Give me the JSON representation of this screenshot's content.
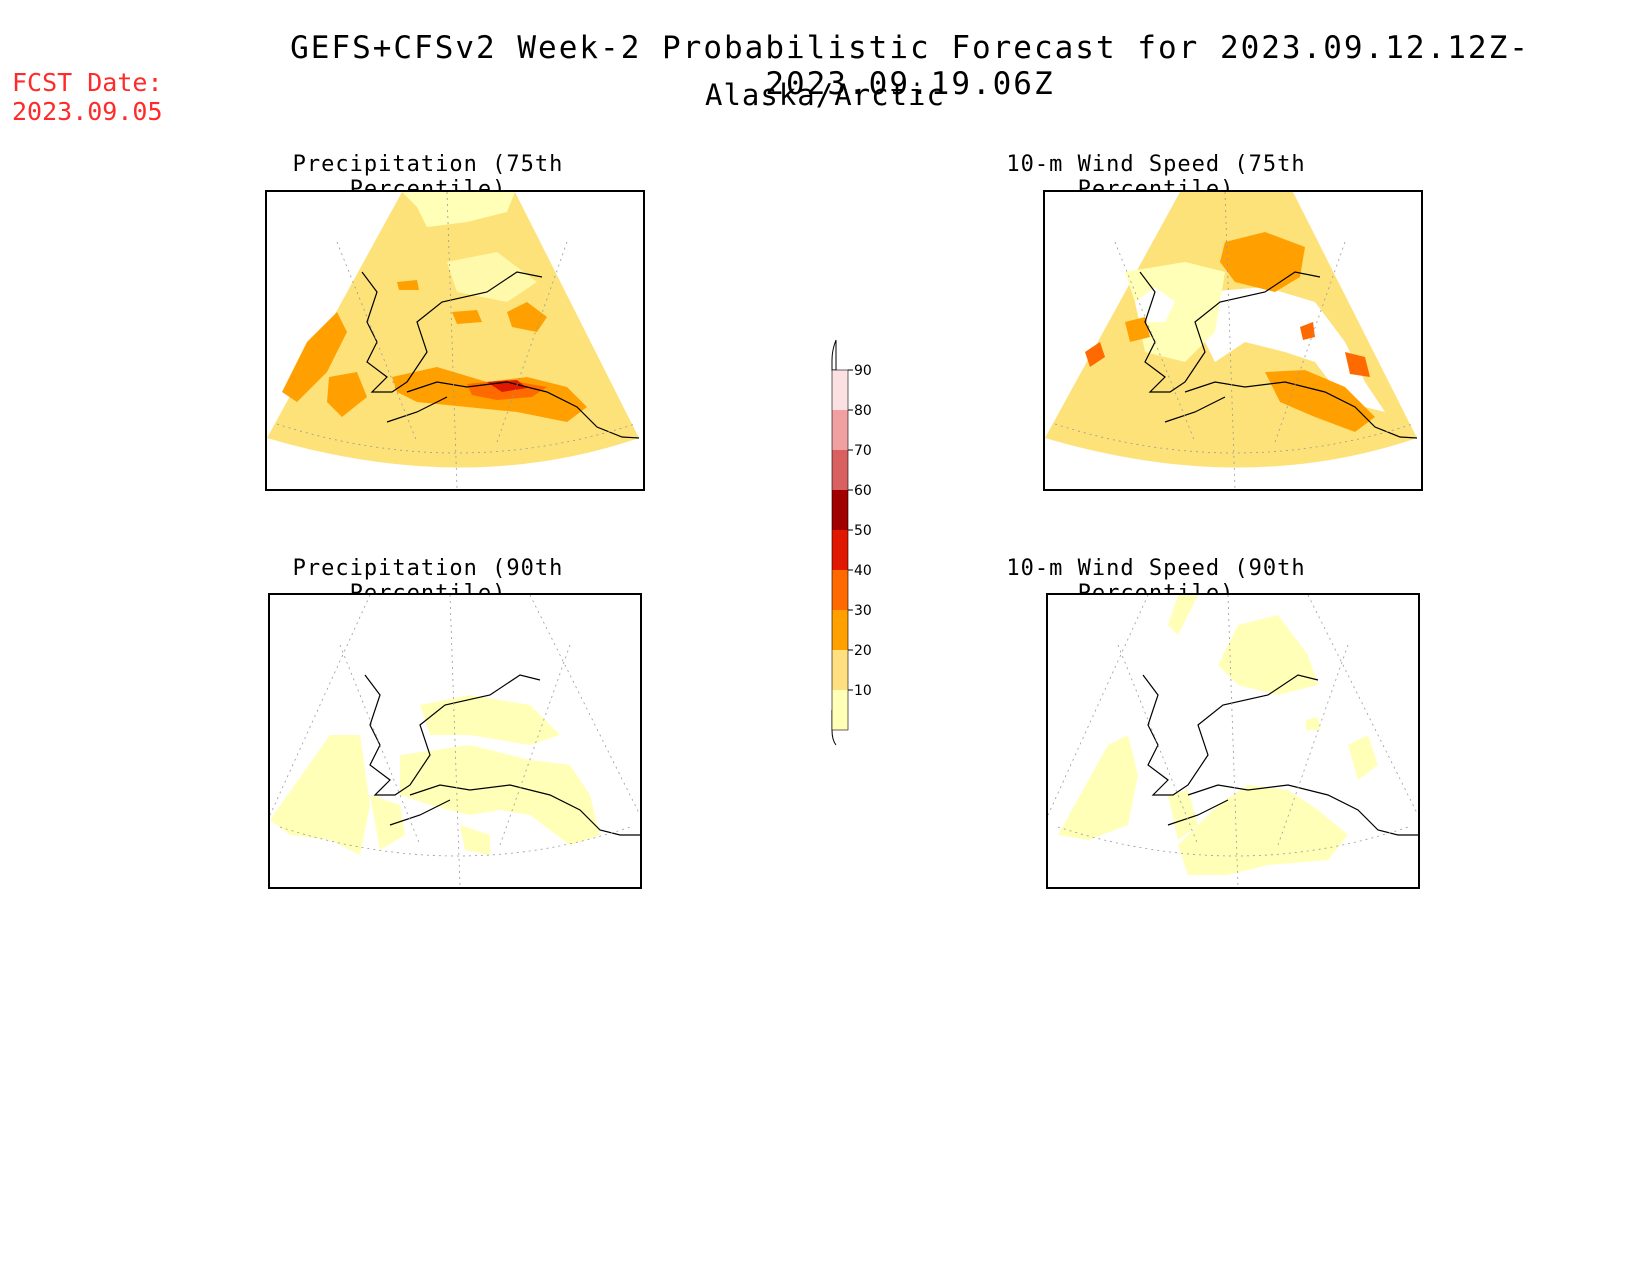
{
  "header": {
    "title": "GEFS+CFSv2 Week-2 Probabilistic Forecast for 2023.09.12.12Z-2023.09.19.06Z",
    "subtitle": "Alaska/Arctic",
    "fcst_label": "FCST Date:",
    "fcst_date": "2023.09.05"
  },
  "panels": [
    {
      "id": "precip75",
      "title": "Precipitation (75th Percentile)"
    },
    {
      "id": "wind75",
      "title": "10-m Wind Speed (75th Percentile)"
    },
    {
      "id": "precip90",
      "title": "Precipitation (90th Percentile)"
    },
    {
      "id": "wind90",
      "title": "10-m Wind Speed (90th Percentile)"
    }
  ],
  "colorbar": {
    "labels": [
      "90",
      "80",
      "70",
      "60",
      "50",
      "40",
      "30",
      "20",
      "10"
    ],
    "colors": {
      "90": "#fbe1e1",
      "80": "#f0a0a0",
      "70": "#d86060",
      "60": "#a00000",
      "50": "#e01800",
      "40": "#ff6a00",
      "30": "#ffa000",
      "20": "#ffe080",
      "10": "#ffffb8"
    }
  },
  "colors": {
    "fcst": "#ff2a2a",
    "c10": "#ffffb8",
    "c20": "#fde27a",
    "c30": "#ffa000",
    "c40": "#ff6a00",
    "c50": "#e01800"
  }
}
